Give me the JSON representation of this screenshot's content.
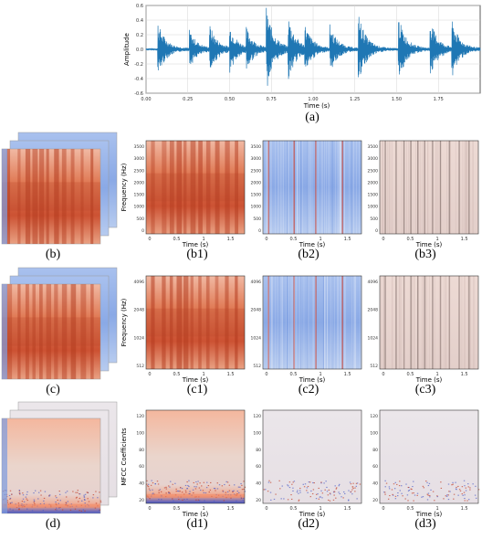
{
  "captions": {
    "a": "(a)",
    "b": "(b)",
    "b1": "(b1)",
    "b2": "(b2)",
    "b3": "(b3)",
    "c": "(c)",
    "c1": "(c1)",
    "c2": "(c2)",
    "c3": "(c3)",
    "d": "(d)",
    "d1": "(d1)",
    "d2": "(d2)",
    "d3": "(d3)"
  },
  "colors": {
    "waveform": "#1f77b4",
    "spec_warm": "#d9603b",
    "spec_cool": "#6f93d8",
    "spec_neutral": "#e8d6d0",
    "mfcc_low": "#3b4cc0"
  },
  "chart_data": [
    {
      "id": "a",
      "type": "line",
      "xlabel": "Time (s)",
      "ylabel": "Amplitude",
      "xlim": [
        0,
        2.0
      ],
      "ylim": [
        -0.6,
        0.6
      ],
      "xticks": [
        "0.00",
        "0.25",
        "0.50",
        "0.75",
        "1.00",
        "1.25",
        "1.50",
        "1.75"
      ],
      "yticks": [
        "0.6",
        "0.4",
        "0.2",
        "0.0",
        "-0.2",
        "-0.4",
        "-0.6"
      ],
      "onsets": [
        0.07,
        0.26,
        0.38,
        0.5,
        0.6,
        0.72,
        0.85,
        0.95,
        1.1,
        1.27,
        1.51,
        1.7,
        1.83
      ],
      "peaks": [
        0.38,
        0.25,
        0.32,
        0.3,
        0.26,
        0.55,
        0.43,
        0.3,
        0.32,
        0.5,
        0.45,
        0.4,
        0.38
      ]
    },
    {
      "id": "b1",
      "type": "heatmap",
      "style": "warm",
      "xlabel": "Time (s)",
      "ylabel": "Frequency (Hz)",
      "xticks": [
        "0",
        "0.5",
        "1",
        "1.5"
      ],
      "yticks": [
        "3500",
        "3000",
        "2500",
        "2000",
        "1500",
        "1000",
        "500",
        "0"
      ]
    },
    {
      "id": "b2",
      "type": "heatmap",
      "style": "cool",
      "xlabel": "Time (s)",
      "ylabel": "",
      "xticks": [
        "0",
        "0.5",
        "1",
        "1.5"
      ],
      "yticks": [
        "3500",
        "3000",
        "2500",
        "2000",
        "1500",
        "1000",
        "500",
        "0"
      ]
    },
    {
      "id": "b3",
      "type": "heatmap",
      "style": "neutral",
      "xlabel": "Time (s)",
      "ylabel": "",
      "xticks": [
        "0",
        "0.5",
        "1",
        "1.5"
      ],
      "yticks": [
        "3500",
        "3000",
        "2500",
        "2000",
        "1500",
        "1000",
        "500",
        "0"
      ]
    },
    {
      "id": "c1",
      "type": "heatmap",
      "style": "warm",
      "xlabel": "Time (s)",
      "ylabel": "Frequency (Hz)",
      "xticks": [
        "0",
        "0.5",
        "1",
        "1.5"
      ],
      "yticks": [
        "4096",
        "2048",
        "1024",
        "512"
      ]
    },
    {
      "id": "c2",
      "type": "heatmap",
      "style": "cool",
      "xlabel": "Time (s)",
      "ylabel": "",
      "xticks": [
        "0",
        "0.5",
        "1",
        "1.5"
      ],
      "yticks": [
        "4096",
        "2048",
        "1024",
        "512"
      ]
    },
    {
      "id": "c3",
      "type": "heatmap",
      "style": "neutral",
      "xlabel": "Time (s)",
      "ylabel": "",
      "xticks": [
        "0",
        "0.5",
        "1",
        "1.5"
      ],
      "yticks": [
        "4096",
        "2048",
        "1024",
        "512"
      ]
    },
    {
      "id": "d1",
      "type": "heatmap",
      "style": "mfcc",
      "xlabel": "Time (s)",
      "ylabel": "MFCC Coefficients",
      "xticks": [
        "0",
        "0.5",
        "1",
        "1.5"
      ],
      "yticks": [
        "120",
        "100",
        "80",
        "60",
        "40",
        "20"
      ]
    },
    {
      "id": "d2",
      "type": "heatmap",
      "style": "mfcc-light",
      "xlabel": "Time (s)",
      "ylabel": "",
      "xticks": [
        "0",
        "0.5",
        "1",
        "1.5"
      ],
      "yticks": [
        "120",
        "100",
        "80",
        "60",
        "40",
        "20"
      ]
    },
    {
      "id": "d3",
      "type": "heatmap",
      "style": "mfcc-light",
      "xlabel": "Time (s)",
      "ylabel": "",
      "xticks": [
        "0",
        "0.5",
        "1",
        "1.5"
      ],
      "yticks": [
        "120",
        "100",
        "80",
        "60",
        "40",
        "20"
      ]
    }
  ]
}
